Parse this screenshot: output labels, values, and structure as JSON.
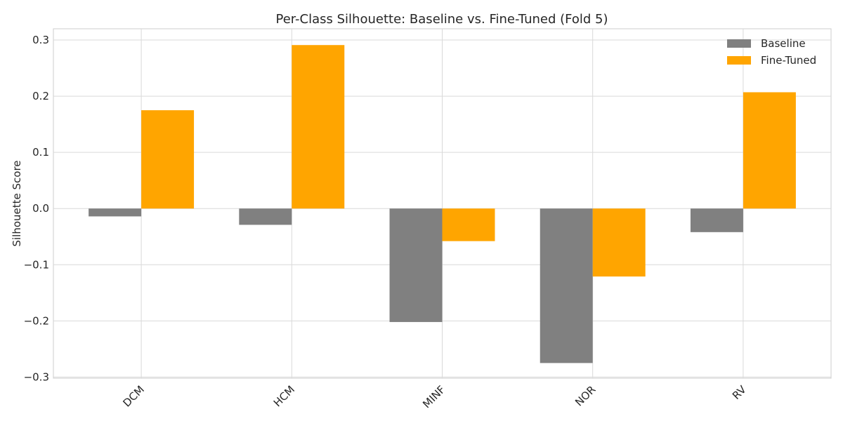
{
  "chart_data": {
    "type": "bar",
    "title": "Per-Class Silhouette: Baseline vs. Fine-Tuned (Fold 5)",
    "xlabel": "",
    "ylabel": "Silhouette Score",
    "categories": [
      "DCM",
      "HCM",
      "MINF",
      "NOR",
      "RV"
    ],
    "series": [
      {
        "name": "Baseline",
        "color": "#808080",
        "values": [
          -0.014,
          -0.029,
          -0.202,
          -0.275,
          -0.042
        ]
      },
      {
        "name": "Fine-Tuned",
        "color": "#FFA500",
        "values": [
          0.175,
          0.291,
          -0.058,
          -0.121,
          0.207
        ]
      }
    ],
    "ylim": [
      -0.302,
      0.32
    ],
    "yticks": [
      0.3,
      0.2,
      0.1,
      0.0,
      -0.1,
      -0.2,
      -0.3
    ],
    "ytick_labels": [
      "0.3",
      "0.2",
      "0.1",
      "0.0",
      "−0.1",
      "−0.2",
      "−0.3"
    ],
    "grid": true,
    "legend_position": "top-right"
  }
}
